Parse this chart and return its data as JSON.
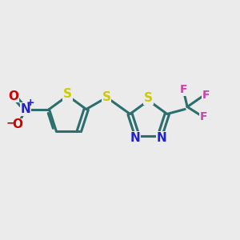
{
  "background_color": "#ebebeb",
  "bond_color": "#2d6e6e",
  "S_color": "#cccc00",
  "N_color": "#2222cc",
  "O_color": "#cc0000",
  "F_color": "#cc44aa",
  "line_width": 2.2,
  "figsize": [
    3.0,
    3.0
  ],
  "dpi": 100,
  "xlim": [
    0,
    10
  ],
  "ylim": [
    0,
    10
  ]
}
